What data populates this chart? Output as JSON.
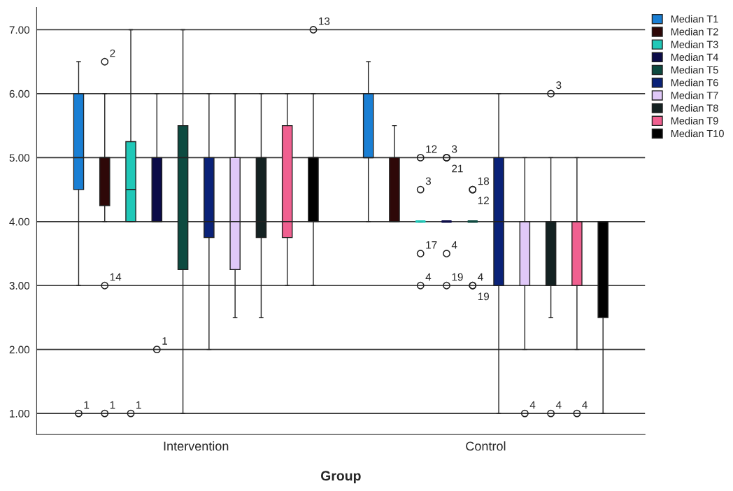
{
  "chart_data": {
    "type": "box",
    "xlabel": "Group",
    "categories": [
      "Intervention",
      "Control"
    ],
    "ylim": [
      0.67,
      7.35
    ],
    "yticks": [
      {
        "value": 1,
        "label": "1.00"
      },
      {
        "value": 2,
        "label": "2.00"
      },
      {
        "value": 3,
        "label": "3.00"
      },
      {
        "value": 4,
        "label": "4.00"
      },
      {
        "value": 5,
        "label": "5.00"
      },
      {
        "value": 6,
        "label": "6.00"
      },
      {
        "value": 7,
        "label": "7.00"
      }
    ],
    "grid": "y",
    "legend": "top right",
    "series": [
      {
        "name": "Median T1",
        "color": "#1a7fd4",
        "boxes": [
          {
            "low": 3,
            "q1": 4.5,
            "median": 5,
            "q3": 6,
            "high": 6.5,
            "outliers": [
              1
            ]
          },
          {
            "low": 4,
            "q1": 5,
            "median": 5,
            "q3": 6,
            "high": 6.5
          }
        ]
      },
      {
        "name": "Median T2",
        "color": "#2e0808",
        "boxes": [
          {
            "low": 4,
            "q1": 4.25,
            "median": 5,
            "q3": 5,
            "high": 6,
            "outliers": [
              6.5,
              3,
              1
            ]
          },
          {
            "low": 4,
            "q1": 4,
            "median": 4,
            "q3": 5,
            "high": 5.5
          }
        ]
      },
      {
        "name": "Median T3",
        "color": "#20c8b8",
        "boxes": [
          {
            "low": 4,
            "q1": 4,
            "median": 4.5,
            "q3": 5.25,
            "high": 7,
            "outliers": [
              1
            ]
          },
          {
            "low": 4,
            "q1": 4,
            "median": 4,
            "q3": 4,
            "high": 4,
            "outliers": [
              5,
              4.5,
              3.5,
              3
            ]
          }
        ]
      },
      {
        "name": "Median T4",
        "color": "#0c0c48",
        "boxes": [
          {
            "low": 4,
            "q1": 4,
            "median": 4,
            "q3": 5,
            "high": 6,
            "outliers": [
              2
            ]
          },
          {
            "low": 4,
            "q1": 4,
            "median": 4,
            "q3": 4,
            "high": 4,
            "outliers": [
              5,
              5,
              3.5,
              3
            ]
          }
        ]
      },
      {
        "name": "Median T5",
        "color": "#0d4a40",
        "boxes": [
          {
            "low": 1,
            "q1": 3.25,
            "median": 5,
            "q3": 5.5,
            "high": 7
          },
          {
            "low": 4,
            "q1": 4,
            "median": 4,
            "q3": 4,
            "high": 4,
            "outliers": [
              4.5,
              4.5,
              3,
              3
            ]
          }
        ]
      },
      {
        "name": "Median T6",
        "color": "#0a2278",
        "boxes": [
          {
            "low": 2,
            "q1": 3.75,
            "median": 4,
            "q3": 5,
            "high": 6
          },
          {
            "low": 1,
            "q1": 3,
            "median": 4,
            "q3": 5,
            "high": 6
          }
        ]
      },
      {
        "name": "Median T7",
        "color": "#e0c8f8",
        "boxes": [
          {
            "low": 2.5,
            "q1": 3.25,
            "median": 4,
            "q3": 5,
            "high": 6
          },
          {
            "low": 2,
            "q1": 3,
            "median": 4,
            "q3": 4,
            "high": 5,
            "outliers": [
              1
            ]
          }
        ]
      },
      {
        "name": "Median T8",
        "color": "#142222",
        "boxes": [
          {
            "low": 2.5,
            "q1": 3.75,
            "median": 4,
            "q3": 5,
            "high": 6
          },
          {
            "low": 2.5,
            "q1": 3,
            "median": 4,
            "q3": 4,
            "high": 5,
            "outliers": [
              6,
              1
            ]
          }
        ]
      },
      {
        "name": "Median T9",
        "color": "#f06090",
        "boxes": [
          {
            "low": 3,
            "q1": 3.75,
            "median": 4,
            "q3": 5.5,
            "high": 6
          },
          {
            "low": 2,
            "q1": 3,
            "median": 4,
            "q3": 4,
            "high": 5,
            "outliers": [
              1
            ]
          }
        ]
      },
      {
        "name": "Median T10",
        "color": "#000000",
        "boxes": [
          {
            "low": 3,
            "q1": 4,
            "median": 5,
            "q3": 5,
            "high": 6,
            "outliers": [
              7
            ]
          },
          {
            "low": 1,
            "q1": 2.5,
            "median": 4,
            "q3": 4,
            "high": 4
          }
        ]
      }
    ],
    "annotations": [
      "1",
      "2",
      "14",
      "1",
      "1",
      "12",
      "3",
      "17",
      "4",
      "1",
      "3",
      "21",
      "4",
      "19",
      "18",
      "12",
      "4",
      "19",
      "4",
      "3",
      "4",
      "4",
      "13"
    ]
  }
}
